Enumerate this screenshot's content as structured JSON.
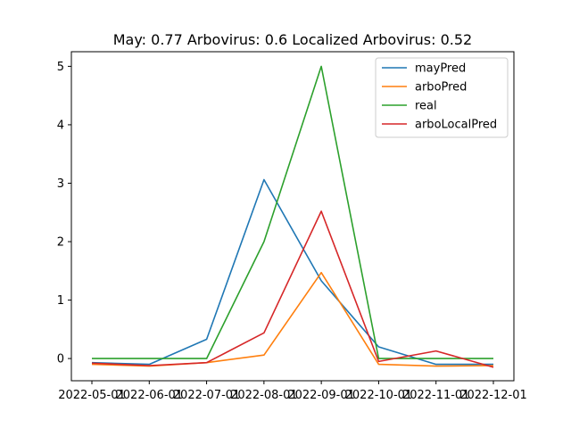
{
  "chart_data": {
    "type": "line",
    "title": "May: 0.77    Arbovirus: 0.6   Localized Arbovirus: 0.52",
    "xlabel": "",
    "ylabel": "",
    "categories": [
      "2022-05-01",
      "2022-06-01",
      "2022-07-01",
      "2022-08-01",
      "2022-09-01",
      "2022-10-01",
      "2022-11-01",
      "2022-12-01"
    ],
    "yticks": [
      0,
      1,
      2,
      3,
      4,
      5
    ],
    "ylim": [
      -0.38,
      5.25
    ],
    "legend_position": "top-right",
    "grid": false,
    "series": [
      {
        "name": "mayPred",
        "color": "#1f77b4",
        "values": [
          -0.07,
          -0.1,
          0.33,
          3.06,
          1.33,
          0.2,
          -0.1,
          -0.1
        ]
      },
      {
        "name": "arboPred",
        "color": "#ff7f0e",
        "values": [
          -0.1,
          -0.13,
          -0.07,
          0.06,
          1.47,
          -0.1,
          -0.13,
          -0.12
        ]
      },
      {
        "name": "real",
        "color": "#2ca02c",
        "values": [
          0,
          0,
          0,
          2,
          5,
          0,
          0,
          0
        ]
      },
      {
        "name": "arboLocalPred",
        "color": "#d62728",
        "values": [
          -0.08,
          -0.12,
          -0.07,
          0.44,
          2.52,
          -0.05,
          0.13,
          -0.15
        ]
      }
    ]
  }
}
